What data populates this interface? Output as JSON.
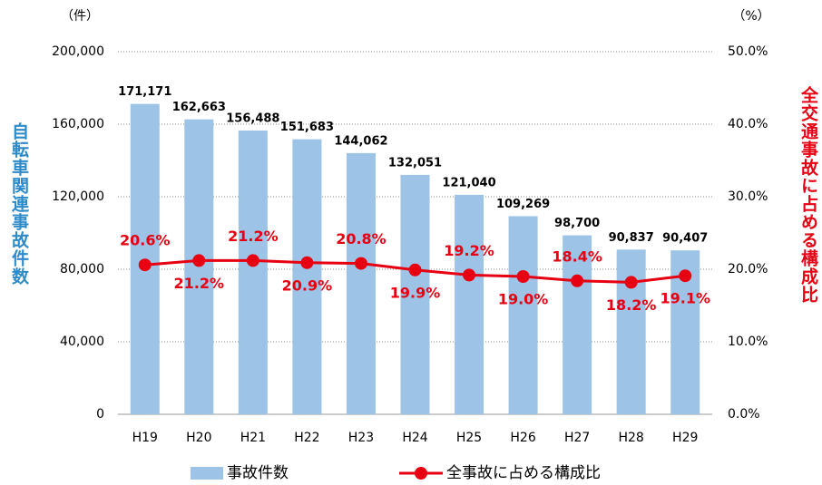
{
  "chart_data": {
    "type": "combo",
    "y_unit": "（件）",
    "y2_unit": "（%）",
    "ylabel": "自転車関連事故件数",
    "y2label": "全交通事故に占める構成比",
    "categories": [
      "H19",
      "H20",
      "H21",
      "H22",
      "H23",
      "H24",
      "H25",
      "H26",
      "H27",
      "H28",
      "H29"
    ],
    "series": [
      {
        "name": "事故件数",
        "kind": "bar",
        "color": "#9dc3e6",
        "values": [
          171171,
          162663,
          156488,
          151683,
          144062,
          132051,
          121040,
          109269,
          98700,
          90837,
          90407
        ],
        "value_labels": [
          "171,171",
          "162,663",
          "156,488",
          "151,683",
          "144,062",
          "132,051",
          "121,040",
          "109,269",
          "98,700",
          "90,837",
          "90,407"
        ]
      },
      {
        "name": "全事故に占める構成比",
        "kind": "line",
        "axis": "y2",
        "color": "#e60012",
        "values": [
          20.6,
          21.2,
          21.2,
          20.9,
          20.8,
          19.9,
          19.2,
          19.0,
          18.4,
          18.2,
          19.1
        ],
        "value_labels": [
          "20.6%",
          "21.2%",
          "21.2%",
          "20.9%",
          "20.8%",
          "19.9%",
          "19.2%",
          "19.0%",
          "18.4%",
          "18.2%",
          "19.1%"
        ]
      }
    ],
    "ylim": [
      0,
      200000
    ],
    "yticks": [
      0,
      {
        "value": 40000,
        "label": "40,000"
      },
      {
        "value": 80000,
        "label": "80,000"
      },
      {
        "value": 120000,
        "label": "120,000"
      },
      {
        "value": 160000,
        "label": "160,000"
      },
      {
        "value": 200000,
        "label": "200,000"
      }
    ],
    "y2lim": [
      0,
      50
    ],
    "y2ticks": [
      {
        "value": 0,
        "label": "0.0%"
      },
      {
        "value": 10,
        "label": "10.0%"
      },
      {
        "value": 20,
        "label": "20.0%"
      },
      {
        "value": 30,
        "label": "30.0%"
      },
      {
        "value": 40,
        "label": "40.0%"
      },
      {
        "value": 50,
        "label": "50.0%"
      }
    ],
    "grid": true,
    "legend": "bottom"
  }
}
